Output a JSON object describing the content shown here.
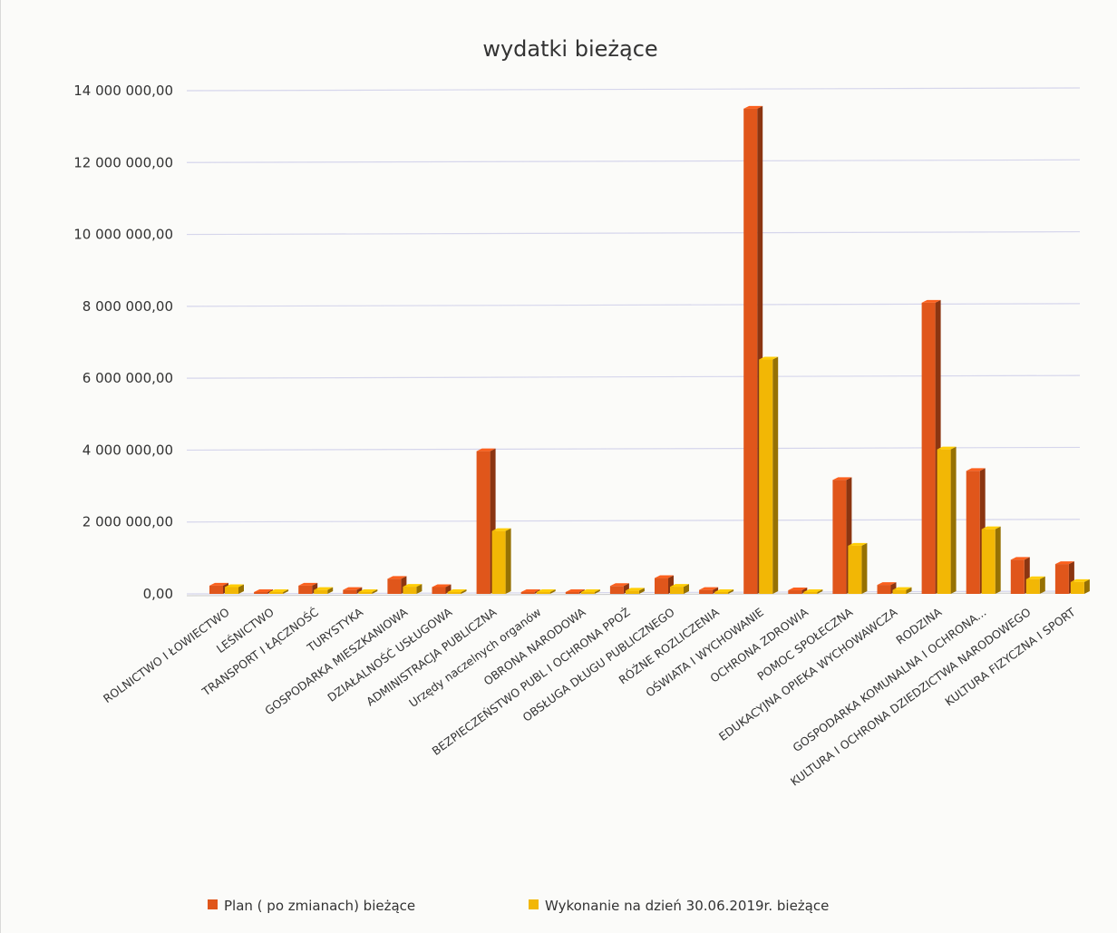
{
  "chart_data": {
    "type": "bar",
    "title": "wydatki bieżące",
    "xlabel": "",
    "ylabel": "",
    "ylim": [
      0,
      14000000
    ],
    "y_ticks": [
      0,
      2000000,
      4000000,
      6000000,
      8000000,
      10000000,
      12000000,
      14000000
    ],
    "y_tick_labels": [
      "0,00",
      "2 000 000,00",
      "4 000 000,00",
      "6 000 000,00",
      "8 000 000,00",
      "10 000 000,00",
      "12 000 000,00",
      "14 000 000,00"
    ],
    "grid": true,
    "legend_position": "bottom",
    "categories": [
      "ROLNICTWO I ŁOWIECTWO",
      "LEŚNICTWO",
      "TRANSPORT  I  ŁĄCZNOŚĆ",
      "TURYSTYKA",
      "GOSPODARKA MIESZKANIOWA",
      "DZIAŁALNOŚĆ USŁUGOWA",
      "ADMINISTRACJA PUBLICZNA",
      "Urzędy naczelnych organów",
      "OBRONA NARODOWA",
      "BEZPIECZEŃSTWO PUBL I OCHRONA PPOŻ",
      "OBSŁUGA DŁUGU PUBLICZNEGO",
      "RÓŻNE ROZLICZENIA",
      "OŚWIATA I WYCHOWANIE",
      "OCHRONA ZDROWIA",
      "POMOC SPOŁECZNA",
      "EDUKACYJNA OPIEKA WYCHOWAWCZA",
      "RODZINA",
      "GOSPODARKA KOMUNALNA I OCHRONA...",
      "KULTURA I OCHRONA DZIEDZICTWA NARODOWEGO",
      "KULTURA FIZYCZNA I SPORT"
    ],
    "series": [
      {
        "name": "Plan ( po zmianach) bieżące",
        "color": "#e0561b",
        "values": [
          230000,
          20000,
          230000,
          110000,
          420000,
          190000,
          3970000,
          20000,
          5000,
          220000,
          440000,
          110000,
          13500000,
          100000,
          3170000,
          250000,
          8100000,
          3420000,
          950000,
          830000
        ]
      },
      {
        "name": "Wykonanie  na dzień 30.06.2019r. bieżące",
        "color": "#f2b705",
        "values": [
          190000,
          10000,
          110000,
          40000,
          200000,
          50000,
          1750000,
          10000,
          0,
          90000,
          200000,
          20000,
          6520000,
          40000,
          1340000,
          110000,
          4020000,
          1800000,
          410000,
          330000
        ]
      }
    ]
  }
}
